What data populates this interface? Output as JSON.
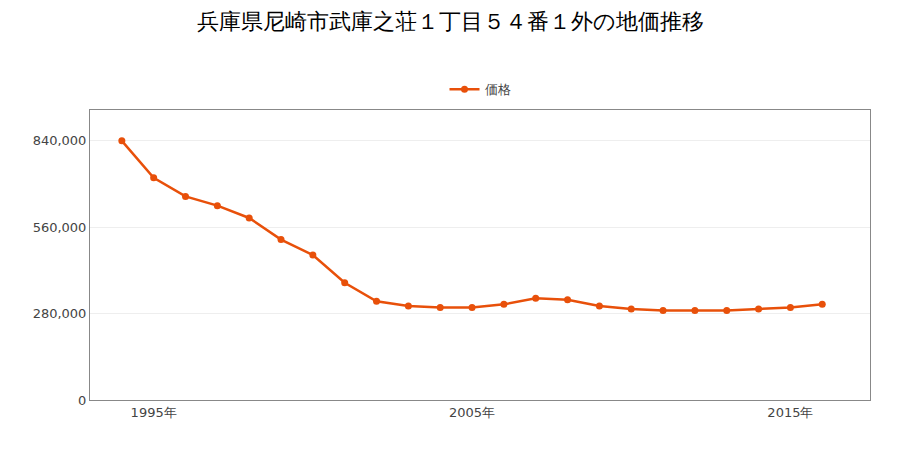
{
  "chart_data": {
    "type": "line",
    "title": "兵庫県尼崎市武庫之荘１丁目５４番１外の地価推移",
    "x": [
      1994,
      1995,
      1996,
      1997,
      1998,
      1999,
      2000,
      2001,
      2002,
      2003,
      2004,
      2005,
      2006,
      2007,
      2008,
      2009,
      2010,
      2011,
      2012,
      2013,
      2014,
      2015,
      2016
    ],
    "series": [
      {
        "name": "価格",
        "color": "#e8500a",
        "marker": "circle",
        "values": [
          840000,
          720000,
          660000,
          630000,
          590000,
          520000,
          470000,
          380000,
          320000,
          305000,
          300000,
          300000,
          310000,
          330000,
          325000,
          305000,
          295000,
          290000,
          290000,
          290000,
          295000,
          300000,
          310000
        ]
      }
    ],
    "xlim": [
      1993.0,
      2017.5
    ],
    "xticks": [
      {
        "value": 1995,
        "label": "1995年"
      },
      {
        "value": 2005,
        "label": "2005年"
      },
      {
        "value": 2015,
        "label": "2015年"
      }
    ],
    "ylim": [
      0,
      940000
    ],
    "yticks": [
      0,
      {
        "value": 280000,
        "label": "280,000"
      },
      {
        "value": 560000,
        "label": "560,000"
      },
      {
        "value": 840000,
        "label": "840,000"
      }
    ],
    "grid": true,
    "legend": "top"
  }
}
